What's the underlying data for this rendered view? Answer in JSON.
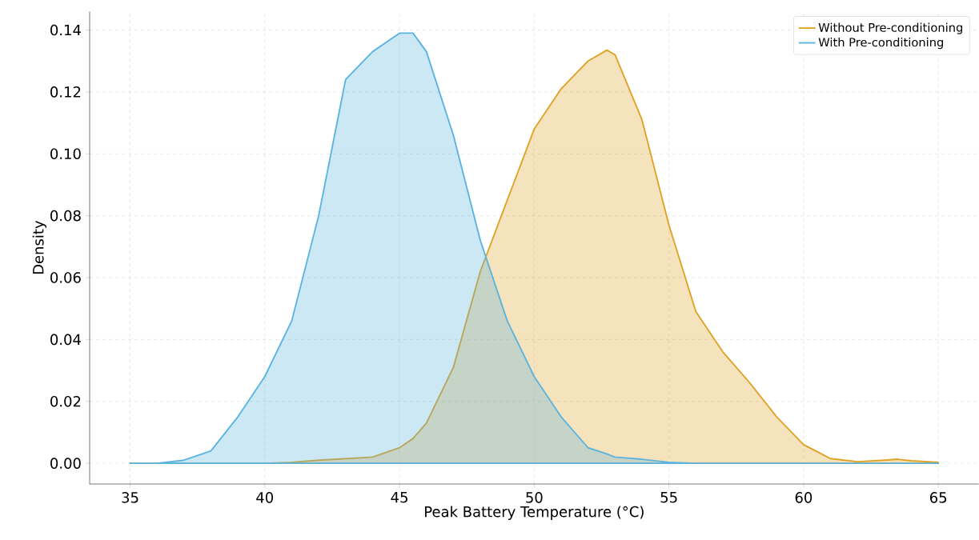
{
  "chart_data": {
    "type": "area",
    "xlabel": "Peak Battery Temperature (°C)",
    "ylabel": "Density",
    "xlim": [
      33.5,
      66.5
    ],
    "ylim": [
      -0.0067,
      0.146
    ],
    "xticks": [
      35,
      40,
      45,
      50,
      55,
      60,
      65
    ],
    "yticks": [
      {
        "value": 0,
        "label": "0.00"
      },
      {
        "value": 0.02,
        "label": "0.02"
      },
      {
        "value": 0.04,
        "label": "0.04"
      },
      {
        "value": 0.06,
        "label": "0.06"
      },
      {
        "value": 0.08,
        "label": "0.08"
      },
      {
        "value": 0.1,
        "label": "0.10"
      },
      {
        "value": 0.12,
        "label": "0.12"
      },
      {
        "value": 0.14,
        "label": "0.14"
      }
    ],
    "grid": true,
    "legend": "top right",
    "marker": "none",
    "line_style": "solid",
    "x": [
      35,
      36,
      37,
      38,
      39,
      40,
      41,
      42,
      43,
      44,
      45,
      45.5,
      46,
      47,
      48,
      49,
      50,
      51,
      52,
      52.7,
      53,
      54,
      55,
      56,
      57,
      58,
      59,
      60,
      61,
      62,
      63,
      63.5,
      64,
      65
    ],
    "series": [
      {
        "name": "Without Pre-conditioning",
        "color": "#dfa224",
        "values": [
          0,
          0,
          0,
          0,
          0,
          0,
          0.0003,
          0.001,
          0.0015,
          0.002,
          0.005,
          0.008,
          0.013,
          0.031,
          0.062,
          0.085,
          0.108,
          0.121,
          0.13,
          0.1335,
          0.132,
          0.111,
          0.077,
          0.049,
          0.036,
          0.026,
          0.015,
          0.006,
          0.0015,
          0.0005,
          0.001,
          0.0013,
          0.0008,
          0.0003
        ]
      },
      {
        "name": "With Pre-conditioning",
        "color": "#5bb4df",
        "values": [
          0,
          0,
          0.001,
          0.004,
          0.015,
          0.028,
          0.046,
          0.08,
          0.124,
          0.133,
          0.139,
          0.139,
          0.133,
          0.106,
          0.072,
          0.046,
          0.028,
          0.015,
          0.005,
          0.003,
          0.002,
          0.0013,
          0.0003,
          0,
          0,
          0,
          0,
          0,
          0,
          0,
          0,
          0,
          0,
          0
        ]
      }
    ]
  }
}
